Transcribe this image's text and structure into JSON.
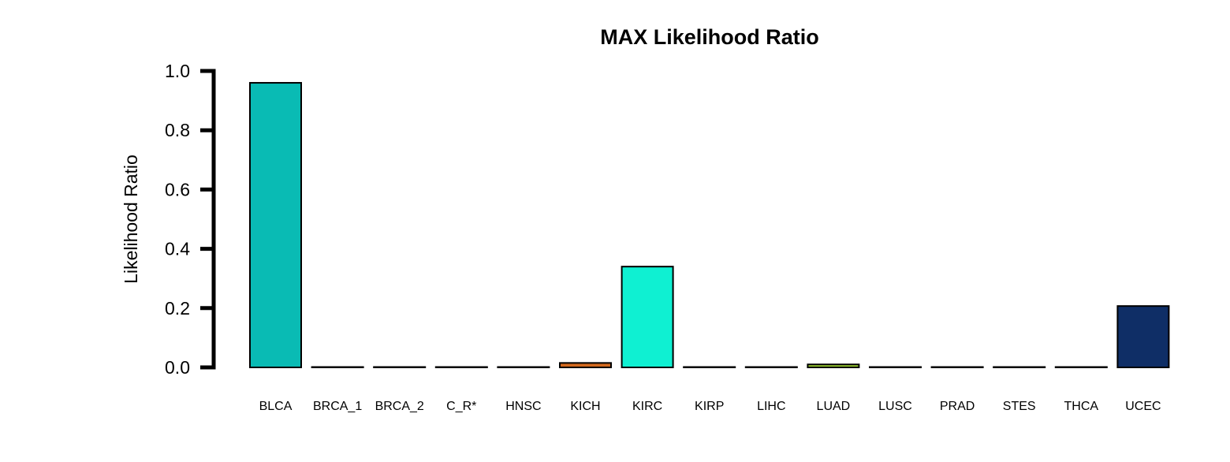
{
  "chart_data": {
    "type": "bar",
    "title": "MAX Likelihood Ratio",
    "xlabel": "",
    "ylabel": "Likelihood Ratio",
    "ylim": [
      0,
      1.0
    ],
    "yticks": [
      "0.0",
      "0.2",
      "0.4",
      "0.6",
      "0.8",
      "1.0"
    ],
    "grid": false,
    "legend": "none",
    "categories": [
      "BLCA",
      "BRCA_1",
      "BRCA_2",
      "C_R*",
      "HNSC",
      "KICH",
      "KIRC",
      "KIRP",
      "LIHC",
      "LUAD",
      "LUSC",
      "PRAD",
      "STES",
      "THCA",
      "UCEC"
    ],
    "values": [
      0.96,
      0.0,
      0.0,
      0.0,
      0.0,
      0.015,
      0.34,
      0.0,
      0.0,
      0.01,
      0.0,
      0.0,
      0.0,
      0.0,
      0.207
    ],
    "colors": [
      "#09BBB4",
      "#FFFFFF",
      "#FFFFFF",
      "#FFFFFF",
      "#FFFFFF",
      "#D2691E",
      "#0FF0D2",
      "#FFFFFF",
      "#FFFFFF",
      "#9ACD32",
      "#FFFFFF",
      "#FFFFFF",
      "#FFFFFF",
      "#FFFFFF",
      "#0F2E66"
    ]
  }
}
